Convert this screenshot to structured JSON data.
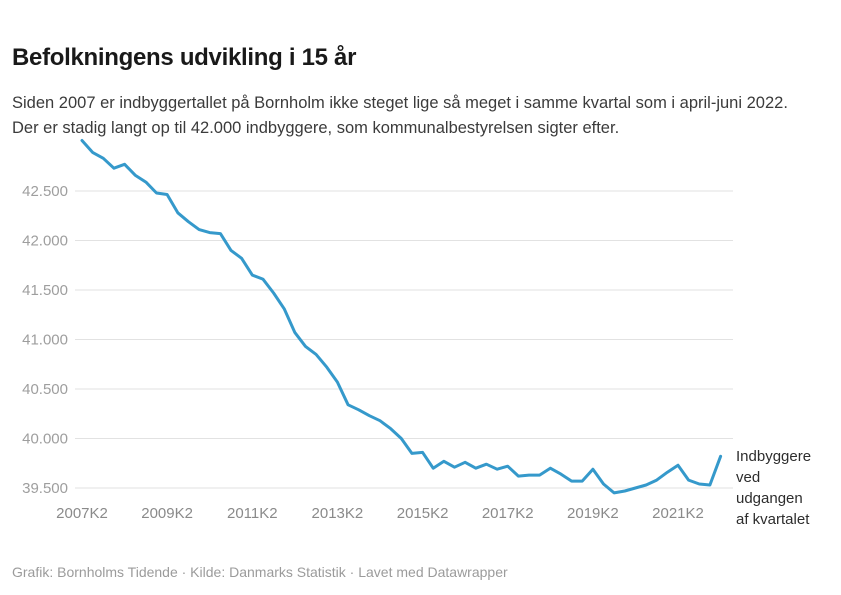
{
  "header": {
    "title": "Befolkningens udvikling i 15 år",
    "subtitle": "Siden 2007 er indbyggertallet på Bornholm ikke steget lige så meget i samme kvartal som i april-juni 2022. Der er stadig langt op til 42.000 indbyggere, som kommunalbestyrelsen sigter efter."
  },
  "chart_data": {
    "type": "line",
    "title": "Befolkningens udvikling i 15 år",
    "xlabel": "",
    "ylabel": "",
    "series_label": "Indbyggere ved udgangen af kvartalet",
    "categories": [
      "2007K2",
      "2007K3",
      "2007K4",
      "2008K1",
      "2008K2",
      "2008K3",
      "2008K4",
      "2009K1",
      "2009K2",
      "2009K3",
      "2009K4",
      "2010K1",
      "2010K2",
      "2010K3",
      "2010K4",
      "2011K1",
      "2011K2",
      "2011K3",
      "2011K4",
      "2012K1",
      "2012K2",
      "2012K3",
      "2012K4",
      "2013K1",
      "2013K2",
      "2013K3",
      "2013K4",
      "2014K1",
      "2014K2",
      "2014K3",
      "2014K4",
      "2015K1",
      "2015K2",
      "2015K3",
      "2015K4",
      "2016K1",
      "2016K2",
      "2016K3",
      "2016K4",
      "2017K1",
      "2017K2",
      "2017K3",
      "2017K4",
      "2018K1",
      "2018K2",
      "2018K3",
      "2018K4",
      "2019K1",
      "2019K2",
      "2019K3",
      "2019K4",
      "2020K1",
      "2020K2",
      "2020K3",
      "2020K4",
      "2021K1",
      "2021K2",
      "2021K3",
      "2021K4",
      "2022K1",
      "2022K2"
    ],
    "values": [
      43010,
      42890,
      42830,
      42730,
      42770,
      42660,
      42590,
      42480,
      42465,
      42280,
      42190,
      42110,
      42080,
      42070,
      41900,
      41820,
      41650,
      41610,
      41470,
      41310,
      41070,
      40930,
      40850,
      40720,
      40570,
      40340,
      40290,
      40230,
      40180,
      40100,
      40000,
      39850,
      39860,
      39700,
      39770,
      39710,
      39760,
      39700,
      39740,
      39690,
      39720,
      39620,
      39630,
      39630,
      39700,
      39640,
      39570,
      39570,
      39690,
      39540,
      39450,
      39470,
      39500,
      39530,
      39580,
      39660,
      39730,
      39580,
      39540,
      39530,
      39820
    ],
    "x_tick_labels": [
      "2007K2",
      "2009K2",
      "2011K2",
      "2013K2",
      "2015K2",
      "2017K2",
      "2019K2",
      "2021K2"
    ],
    "x_tick_step": 8,
    "y_ticks": [
      39500,
      40000,
      40500,
      41000,
      41500,
      42000,
      42500
    ],
    "y_tick_labels": [
      "39.500",
      "40.000",
      "40.500",
      "41.000",
      "41.500",
      "42.000",
      "42.500"
    ],
    "ylim": [
      39380,
      43060
    ],
    "grid": "horizontal",
    "legend_position": "right-of-line-end"
  },
  "footer": {
    "credits": "Grafik: Bornholms Tidende · Kilde: Danmarks Statistik · Lavet med Datawrapper"
  },
  "colors": {
    "accent": "#3599cb",
    "grid": "#e2e2e2",
    "y_axis_text": "#9e9e9e",
    "x_axis_text": "#8a8a8a",
    "title_text": "#191919",
    "subtitle_text": "#3b3b3b",
    "annotation_text": "#2d2d2d",
    "footer_text": "#9b9b9b",
    "background": "#ffffff"
  }
}
